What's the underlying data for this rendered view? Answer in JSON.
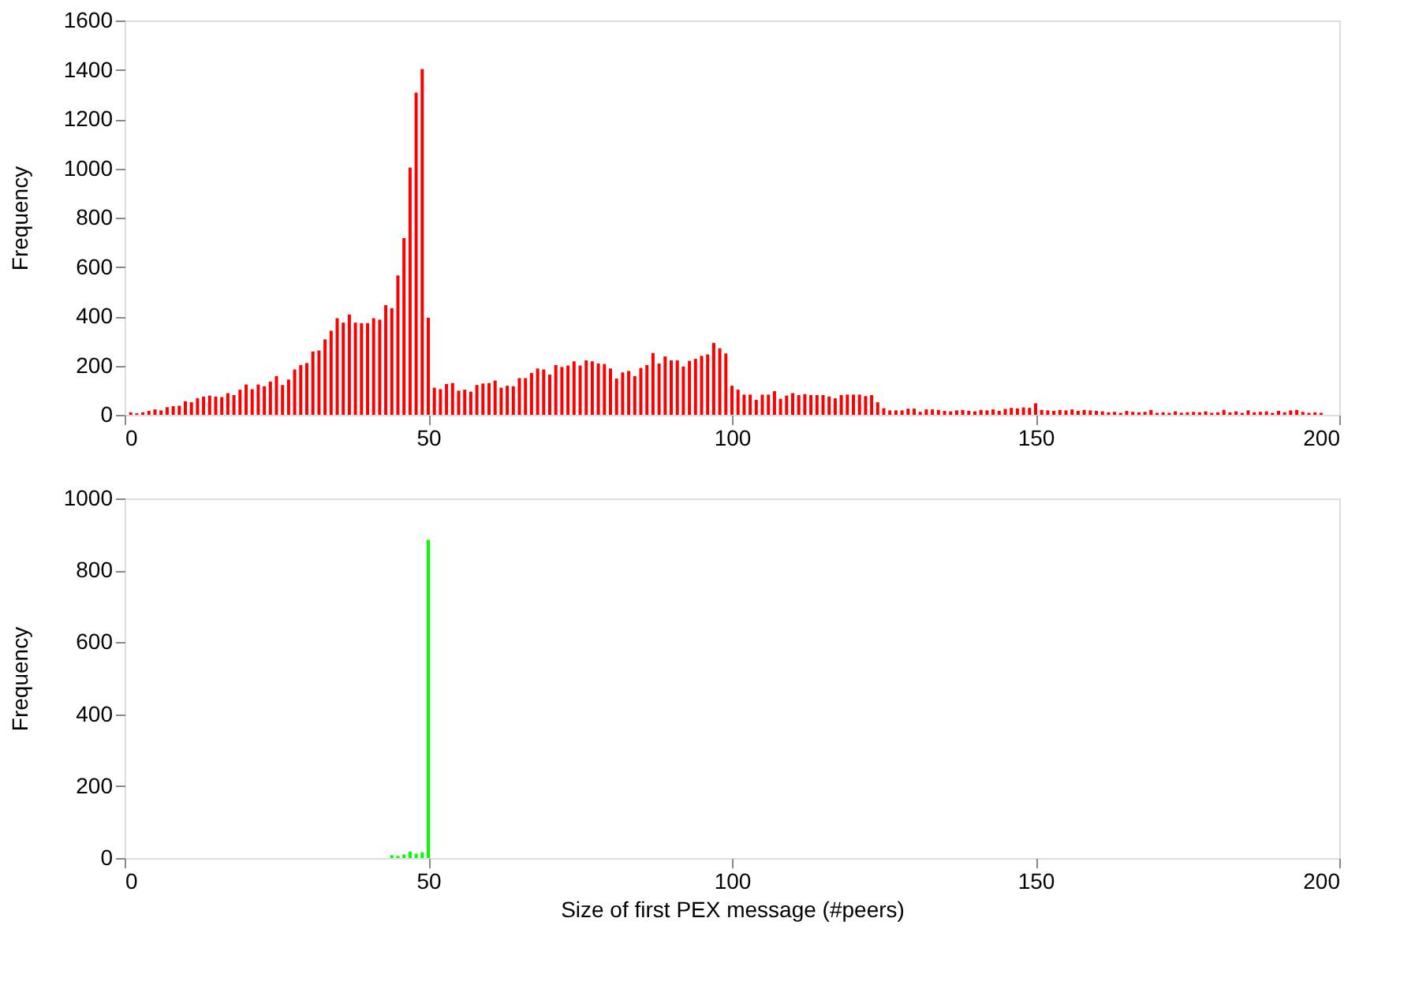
{
  "chart_data": [
    {
      "type": "bar",
      "ylabel": "Frequency",
      "x": [
        1,
        2,
        3,
        4,
        5,
        6,
        7,
        8,
        9,
        10,
        11,
        12,
        13,
        14,
        15,
        16,
        17,
        18,
        19,
        20,
        21,
        22,
        23,
        24,
        25,
        26,
        27,
        28,
        29,
        30,
        31,
        32,
        33,
        34,
        35,
        36,
        37,
        38,
        39,
        40,
        41,
        42,
        43,
        44,
        45,
        46,
        47,
        48,
        49,
        50,
        51,
        52,
        53,
        54,
        55,
        56,
        57,
        58,
        59,
        60,
        61,
        62,
        63,
        64,
        65,
        66,
        67,
        68,
        69,
        70,
        71,
        72,
        73,
        74,
        75,
        76,
        77,
        78,
        79,
        80,
        81,
        82,
        83,
        84,
        85,
        86,
        87,
        88,
        89,
        90,
        91,
        92,
        93,
        94,
        95,
        96,
        97,
        98,
        99,
        100,
        101,
        102,
        103,
        104,
        105,
        106,
        107,
        108,
        109,
        110,
        111,
        112,
        113,
        114,
        115,
        116,
        117,
        118,
        119,
        120,
        121,
        122,
        123,
        124,
        125,
        126,
        127,
        128,
        129,
        130,
        131,
        132,
        133,
        134,
        135,
        136,
        137,
        138,
        139,
        140,
        141,
        142,
        143,
        144,
        145,
        146,
        147,
        148,
        149,
        150,
        151,
        152,
        153,
        154,
        155,
        156,
        157,
        158,
        159,
        160,
        161,
        162,
        163,
        164,
        165,
        166,
        167,
        168,
        169,
        170,
        171,
        172,
        173,
        174,
        175,
        176,
        177,
        178,
        179,
        180,
        181,
        182,
        183,
        184,
        185,
        186,
        187,
        188,
        189,
        190,
        191,
        192,
        193,
        194,
        195,
        196,
        197
      ],
      "series": [
        {
          "color": "#ff0000",
          "values": [
            10,
            6,
            10,
            16,
            22,
            18,
            31,
            35,
            37,
            55,
            51,
            67,
            74,
            78,
            74,
            72,
            88,
            80,
            102,
            123,
            104,
            123,
            116,
            135,
            157,
            121,
            143,
            184,
            202,
            210,
            257,
            261,
            306,
            341,
            392,
            374,
            407,
            374,
            372,
            372,
            392,
            386,
            445,
            433,
            566,
            717,
            1003,
            1307,
            1403,
            394,
            110,
            104,
            125,
            129,
            98,
            102,
            94,
            121,
            127,
            129,
            139,
            110,
            118,
            116,
            149,
            149,
            170,
            188,
            184,
            163,
            202,
            194,
            200,
            217,
            200,
            221,
            217,
            208,
            206,
            188,
            147,
            172,
            178,
            157,
            190,
            202,
            251,
            208,
            237,
            221,
            221,
            196,
            219,
            227,
            239,
            245,
            292,
            270,
            249,
            118,
            102,
            82,
            82,
            61,
            82,
            82,
            96,
            65,
            78,
            88,
            80,
            84,
            80,
            80,
            80,
            74,
            67,
            80,
            82,
            82,
            82,
            76,
            80,
            51,
            27,
            18,
            18,
            18,
            25,
            25,
            12,
            22,
            22,
            20,
            16,
            14,
            18,
            20,
            16,
            14,
            20,
            18,
            22,
            16,
            24,
            28,
            26,
            30,
            28,
            47,
            20,
            18,
            16,
            20,
            18,
            22,
            16,
            20,
            18,
            16,
            14,
            10,
            12,
            8,
            16,
            12,
            10,
            12,
            20,
            8,
            10,
            8,
            14,
            8,
            10,
            12,
            10,
            14,
            8,
            10,
            20,
            10,
            14,
            8,
            18,
            10,
            12,
            14,
            8,
            16,
            10,
            18,
            20,
            12,
            8,
            10,
            8
          ]
        }
      ],
      "xlim": [
        0,
        200
      ],
      "xticks": [
        0,
        50,
        100,
        150,
        200
      ],
      "ylim": [
        0,
        1600
      ],
      "yticks": [
        0,
        200,
        400,
        600,
        800,
        1000,
        1200,
        1400,
        1600
      ],
      "grid": false,
      "legend": false
    },
    {
      "type": "bar",
      "xlabel": "Size of first PEX message (#peers)",
      "ylabel": "Frequency",
      "x": [
        44,
        45,
        46,
        47,
        48,
        49,
        50
      ],
      "series": [
        {
          "color": "#00ff00",
          "values": [
            8,
            6,
            10,
            18,
            12,
            16,
            885
          ]
        }
      ],
      "xlim": [
        0,
        200
      ],
      "xticks": [
        0,
        50,
        100,
        150,
        200
      ],
      "ylim": [
        0,
        1000
      ],
      "yticks": [
        0,
        200,
        400,
        600,
        800,
        1000
      ],
      "grid": false,
      "legend": false
    }
  ]
}
